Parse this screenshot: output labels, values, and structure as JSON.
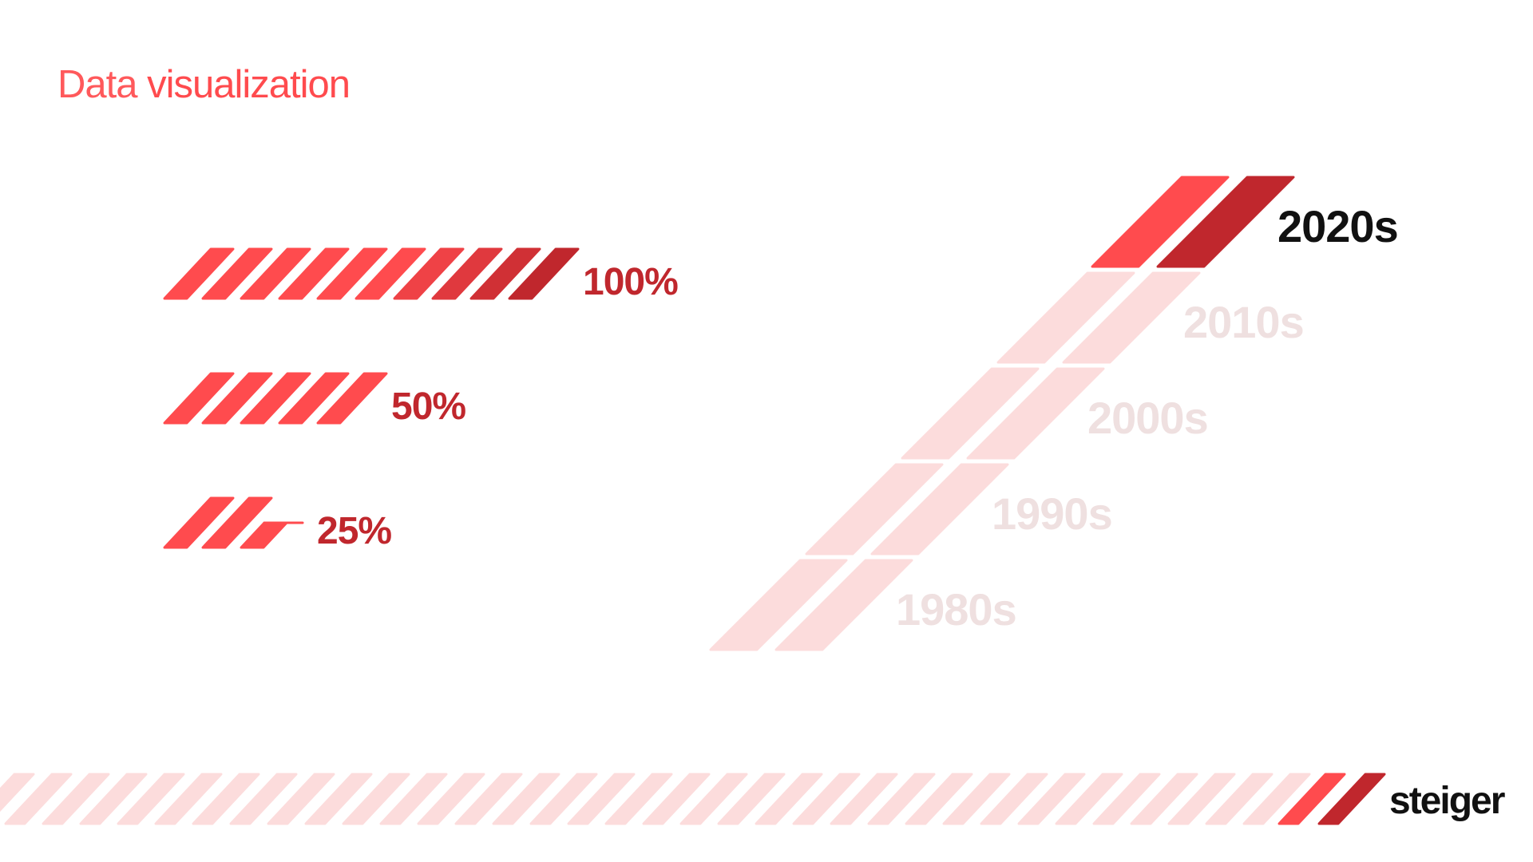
{
  "title": {
    "part1": "Data",
    "part2": "visualization"
  },
  "colors": {
    "red": "#ff4b4e",
    "dark_red": "#c0272d",
    "pale": "#fcdcdc",
    "faded_text": "#efe0e0",
    "active_text": "#111111"
  },
  "progress_bars": [
    {
      "label": "100%",
      "value": 1.0
    },
    {
      "label": "50%",
      "value": 0.5
    },
    {
      "label": "25%",
      "value": 0.25
    }
  ],
  "decades": [
    {
      "label": "2020s",
      "active": true
    },
    {
      "label": "2010s",
      "active": false
    },
    {
      "label": "2000s",
      "active": false
    },
    {
      "label": "1990s",
      "active": false
    },
    {
      "label": "1980s",
      "active": false
    }
  ],
  "logo": "steiger"
}
